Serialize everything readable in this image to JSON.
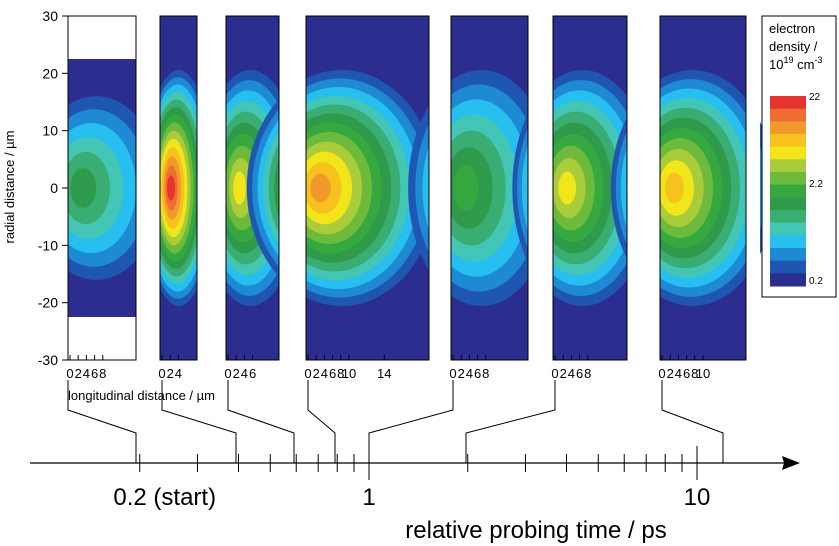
{
  "chart_data": {
    "type": "heatmap",
    "ylabel": "radial distance / µm",
    "xlabel_panel": "longitudinal distance / µm",
    "time_axis_label": "relative probing time / ps",
    "time_axis_scale": "log",
    "time_tick_labels": [
      "0.2 (start)",
      "1",
      "10"
    ],
    "y_ticks": [
      30,
      20,
      10,
      0,
      -10,
      -20,
      -30
    ],
    "ylim": [
      -30,
      30
    ],
    "colorbar": {
      "title_lines": [
        "electron",
        "density /",
        "10",
        "19",
        " cm",
        "-3"
      ],
      "tick_labels": [
        "22",
        "2.2",
        "0.2"
      ],
      "scale": "log",
      "colors": [
        "#2b2e8e",
        "#1e56b2",
        "#1f8ad4",
        "#27bff0",
        "#43c6b5",
        "#3aad72",
        "#2e9a4a",
        "#35a93f",
        "#6dba3c",
        "#a8cc3a",
        "#f2e519",
        "#f7c11e",
        "#f2992b",
        "#ed6d33",
        "#e8342f"
      ]
    },
    "panels": [
      {
        "x_ticks": [
          "0",
          "2",
          "4",
          "6",
          "8"
        ],
        "peak_level": 6
      },
      {
        "x_ticks": [
          "0",
          "2",
          "4"
        ],
        "peak_level": 14
      },
      {
        "x_ticks": [
          "0",
          "2",
          "4",
          "6"
        ],
        "peak_level": 10
      },
      {
        "x_ticks": [
          "0",
          "2",
          "4",
          "6",
          "8",
          "10",
          "14"
        ],
        "peak_level": 12
      },
      {
        "x_ticks": [
          "0",
          "2",
          "4",
          "6",
          "8"
        ],
        "peak_level": 7
      },
      {
        "x_ticks": [
          "0",
          "2",
          "4",
          "6",
          "8"
        ],
        "peak_level": 10
      },
      {
        "x_ticks": [
          "0",
          "2",
          "4",
          "6",
          "8",
          "10"
        ],
        "peak_level": 11
      }
    ]
  }
}
